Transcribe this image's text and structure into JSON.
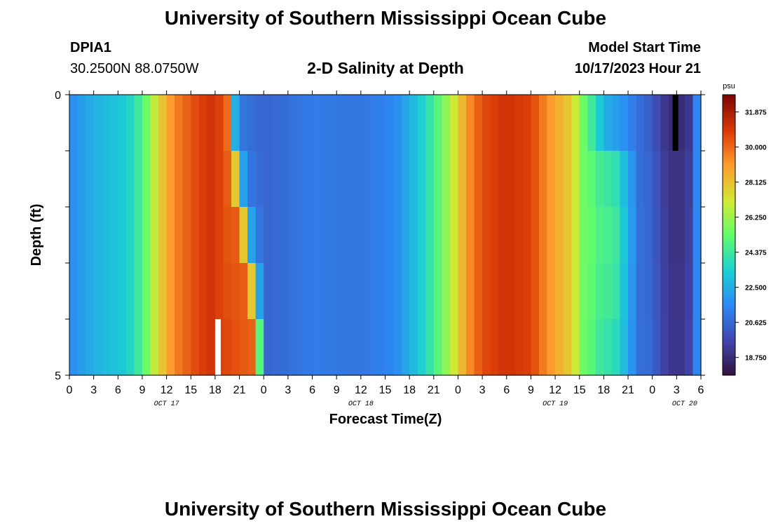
{
  "header": {
    "title": "University of Southern Mississippi Ocean Cube",
    "station_id": "DPIA1",
    "station_location": "30.2500N  88.0750W",
    "model_start_label": "Model Start Time",
    "model_start_value": "10/17/2023 Hour 21"
  },
  "footer": {
    "title": "University of Southern Mississippi Ocean Cube"
  },
  "chart_data": {
    "type": "heatmap",
    "title": "2-D Salinity at Depth",
    "xlabel": "Forecast Time(Z)",
    "ylabel": "Depth (ft)",
    "colorbar_label": "psu",
    "colorbar_ticks": [
      "31.875",
      "30.000",
      "28.125",
      "26.250",
      "24.375",
      "22.500",
      "20.625",
      "18.750"
    ],
    "colorbar_range": [
      17.8,
      32.8
    ],
    "x_hours_range": [
      0,
      78
    ],
    "x_tick_labels": [
      "0",
      "3",
      "6",
      "9",
      "12",
      "15",
      "18",
      "21",
      "0",
      "3",
      "6",
      "9",
      "12",
      "15",
      "18",
      "21",
      "0",
      "3",
      "6",
      "9",
      "12",
      "15",
      "18",
      "21",
      "0",
      "3",
      "6"
    ],
    "day_labels": [
      {
        "label": "OCT 17",
        "hour": 12
      },
      {
        "label": "OCT 18",
        "hour": 36
      },
      {
        "label": "OCT 19",
        "hour": 60
      },
      {
        "label": "OCT 20",
        "hour": 76
      }
    ],
    "y_tick_labels": [
      "0",
      "5"
    ],
    "y_range": [
      0,
      5
    ],
    "depth_levels": [
      0,
      1,
      2,
      3,
      4,
      5
    ],
    "salinity_profile": [
      [
        0,
        21.5
      ],
      [
        2,
        22.3
      ],
      [
        4,
        22.8
      ],
      [
        7,
        23.3
      ],
      [
        9,
        24.8
      ],
      [
        10,
        26.2
      ],
      [
        11,
        27.6
      ],
      [
        13,
        29.5
      ],
      [
        16,
        30.8
      ],
      [
        18,
        31.2
      ],
      [
        19.5,
        30.0
      ],
      [
        20.2,
        23.0
      ],
      [
        21.5,
        21.0
      ],
      [
        24,
        20.5
      ],
      [
        30,
        21.2
      ],
      [
        36,
        21.0
      ],
      [
        40,
        21.5
      ],
      [
        42,
        22.5
      ],
      [
        45,
        24.5
      ],
      [
        47,
        26.5
      ],
      [
        49,
        29.0
      ],
      [
        51,
        30.6
      ],
      [
        54,
        31.2
      ],
      [
        57,
        30.8
      ],
      [
        59,
        29.3
      ],
      [
        62,
        27.8
      ],
      [
        63.5,
        25.5
      ],
      [
        65,
        24.0
      ],
      [
        66,
        22.6
      ],
      [
        68,
        22.0
      ],
      [
        70,
        21.0
      ],
      [
        72,
        20.2
      ],
      [
        73.5,
        19.2
      ],
      [
        74.5,
        18.8
      ],
      [
        75.5,
        18.8
      ],
      [
        76.5,
        19.2
      ],
      [
        77,
        20.8
      ],
      [
        78,
        22.0
      ]
    ],
    "depth_adjust": [
      {
        "depth": 0,
        "front_shift": 0,
        "mid_boost": 0,
        "tail_boost": 0
      },
      {
        "depth": 1,
        "front_shift": 0.3,
        "mid_boost": 1.5,
        "tail_boost": 0.3
      },
      {
        "depth": 2,
        "front_shift": 0.8,
        "mid_boost": 2.2,
        "tail_boost": 0.6
      },
      {
        "depth": 3,
        "front_shift": 1.8,
        "mid_boost": 2.6,
        "tail_boost": 0.8
      },
      {
        "depth": 4,
        "front_shift": 2.8,
        "mid_boost": 2.4,
        "tail_boost": 1.0
      },
      {
        "depth": 5,
        "front_shift": 3.5,
        "mid_boost": 2.0,
        "tail_boost": 1.2
      }
    ],
    "missing_cells": [
      {
        "hour": 18,
        "depth_range": [
          4,
          5
        ],
        "color": "#ffffff"
      },
      {
        "hour": 74.5,
        "depth_range": [
          0,
          1
        ],
        "color": "#000000"
      }
    ]
  }
}
